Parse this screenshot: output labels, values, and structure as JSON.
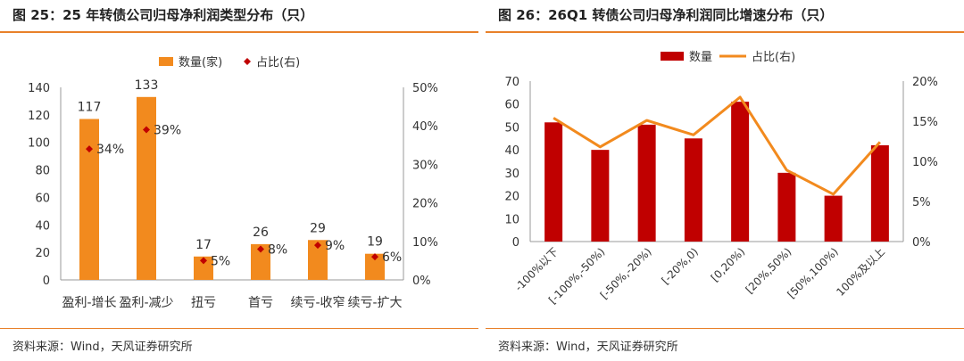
{
  "left": {
    "title": "图 25：25 年转债公司归母净利润类型分布（只）",
    "source": "资料来源：Wind，天风证券研究所"
  },
  "right": {
    "title": "图 26：26Q1 转债公司归母净利润同比增速分布（只）",
    "source": "资料来源：Wind，天风证券研究所"
  },
  "chart_data": [
    {
      "type": "bar",
      "categories": [
        "盈利-增长",
        "盈利-减少",
        "扭亏",
        "首亏",
        "续亏-收窄",
        "续亏-扩大"
      ],
      "series": [
        {
          "name": "数量(家)",
          "kind": "bar",
          "axis": "left",
          "values": [
            117,
            133,
            17,
            26,
            29,
            19
          ],
          "value_labels": [
            "117",
            "133",
            "17",
            "26",
            "29",
            "19"
          ],
          "color": "#f28a1e"
        },
        {
          "name": "占比(右)",
          "kind": "marker",
          "axis": "right",
          "values": [
            34,
            39,
            5,
            8,
            9,
            6
          ],
          "value_labels": [
            "34%",
            "39%",
            "5%",
            "8%",
            "9%",
            "6%"
          ],
          "color": "#c00000"
        }
      ],
      "ylim": [
        0,
        140
      ],
      "yticks": [
        "0",
        "20",
        "40",
        "60",
        "80",
        "100",
        "120",
        "140"
      ],
      "y2lim": [
        0,
        50
      ],
      "y2ticks": [
        "0%",
        "10%",
        "20%",
        "30%",
        "40%",
        "50%"
      ],
      "legend": "top-center",
      "grid": false
    },
    {
      "type": "bar",
      "categories": [
        "-100%以下",
        "[-100%,-50%)",
        "[-50%,-20%)",
        "[-20%,0)",
        "[0,20%)",
        "[20%,50%)",
        "[50%,100%)",
        "100%及以上"
      ],
      "series": [
        {
          "name": "数量",
          "kind": "bar",
          "axis": "left",
          "values": [
            52,
            40,
            51,
            45,
            61,
            30,
            20,
            42
          ],
          "color": "#c00000"
        },
        {
          "name": "占比(右)",
          "kind": "line",
          "axis": "right",
          "values": [
            15.4,
            11.8,
            15.1,
            13.3,
            18.0,
            8.9,
            5.9,
            12.4
          ],
          "color": "#f28a1e"
        }
      ],
      "ylim": [
        0,
        70
      ],
      "yticks": [
        "0",
        "10",
        "20",
        "30",
        "40",
        "50",
        "60",
        "70"
      ],
      "y2lim": [
        0,
        20
      ],
      "y2ticks": [
        "0%",
        "5%",
        "10%",
        "15%",
        "20%"
      ],
      "legend": "top-center",
      "grid": false
    }
  ]
}
